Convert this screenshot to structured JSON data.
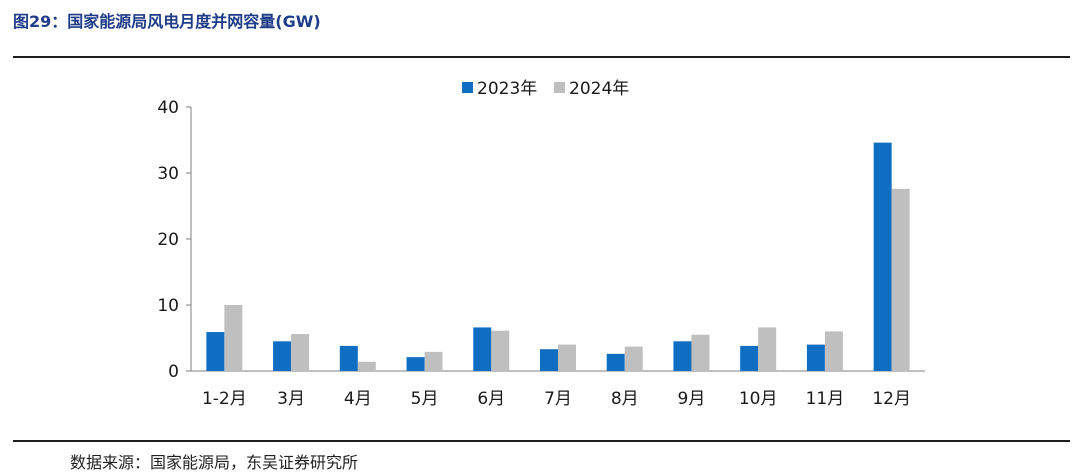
{
  "figure": {
    "title": "图29：国家能源局风电月度并网容量(GW)",
    "source": "数据来源：国家能源局，东吴证券研究所"
  },
  "chart_data": {
    "type": "bar",
    "title": "",
    "xlabel": "",
    "ylabel": "",
    "categories": [
      "1-2月",
      "3月",
      "4月",
      "5月",
      "6月",
      "7月",
      "8月",
      "9月",
      "10月",
      "11月",
      "12月"
    ],
    "series": [
      {
        "name": "2023年",
        "color": "#0f6dc2",
        "values": [
          5.9,
          4.5,
          3.8,
          2.1,
          6.6,
          3.3,
          2.6,
          4.5,
          3.8,
          4.0,
          34.6
        ]
      },
      {
        "name": "2024年",
        "color": "#bfbfbf",
        "values": [
          10.0,
          5.6,
          1.4,
          2.9,
          6.1,
          4.0,
          3.7,
          5.5,
          6.6,
          6.0,
          27.6
        ]
      }
    ],
    "ylim": [
      0,
      40
    ],
    "yticks": [
      0,
      10,
      20,
      30,
      40
    ],
    "grid": false,
    "legend": "top-center"
  }
}
